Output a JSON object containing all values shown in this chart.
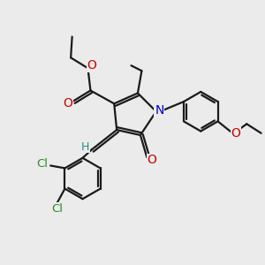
{
  "bg_color": "#ebebeb",
  "bond_color": "#1a1a1a",
  "o_color": "#cc0000",
  "n_color": "#0000cc",
  "cl_color": "#2d8c2d",
  "h_color": "#2d8c8c",
  "line_width": 1.6,
  "figsize": [
    3.0,
    3.0
  ],
  "dpi": 100,
  "xlim": [
    0,
    10
  ],
  "ylim": [
    0,
    10
  ]
}
